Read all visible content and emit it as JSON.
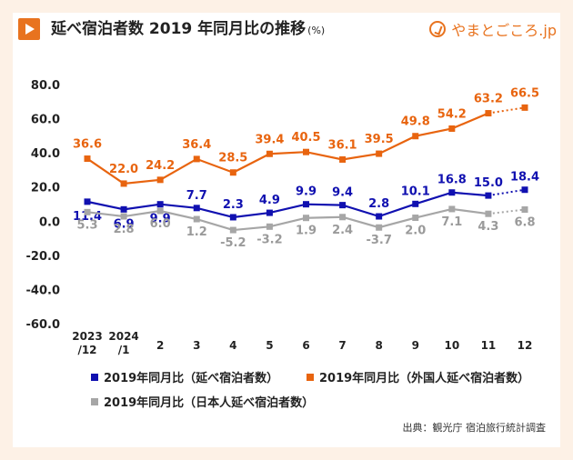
{
  "header": {
    "title": "延べ宿泊者数  2019 年同月比の推移",
    "title_unit": "(%)",
    "logo_text": "やまとごころ.jp",
    "logo_icon": "yamatogokoro-logo-icon",
    "accent_color": "#e8731f"
  },
  "source": "出典：観光庁 宿泊旅行統計調査",
  "chart_data": {
    "type": "line",
    "categories": [
      "2023/12",
      "2024/1",
      "2",
      "3",
      "4",
      "5",
      "6",
      "7",
      "8",
      "9",
      "10",
      "11",
      "12"
    ],
    "category_lines": [
      [
        "2023",
        "/12"
      ],
      [
        "2024",
        "/1"
      ],
      [
        "2"
      ],
      [
        "3"
      ],
      [
        "4"
      ],
      [
        "5"
      ],
      [
        "6"
      ],
      [
        "7"
      ],
      [
        "8"
      ],
      [
        "9"
      ],
      [
        "10"
      ],
      [
        "11"
      ],
      [
        "12"
      ]
    ],
    "y_ticks": [
      "80.0",
      "60.0",
      "40.0",
      "20.0",
      "0.0",
      "-20.0",
      "-40.0",
      "-60.0"
    ],
    "ylim": [
      -60,
      80
    ],
    "grid": false,
    "legend_position": "bottom",
    "dotted_last_segment": true,
    "series": [
      {
        "name": "2019年同月比（延べ宿泊者数）",
        "color": "#1010b0",
        "values": [
          11.4,
          6.9,
          9.9,
          7.7,
          2.3,
          4.9,
          9.9,
          9.4,
          2.8,
          10.1,
          16.8,
          15.0,
          18.4
        ],
        "labels": [
          "11.4",
          "6.9",
          "9.9",
          "7.7",
          "2.3",
          "4.9",
          "9.9",
          "9.4",
          "2.8",
          "10.1",
          "16.8",
          "15.0",
          "18.4"
        ]
      },
      {
        "name": "2019年同月比（外国人延べ宿泊者数）",
        "color": "#e8640f",
        "values": [
          36.6,
          22.0,
          24.2,
          36.4,
          28.5,
          39.4,
          40.5,
          36.1,
          39.5,
          49.8,
          54.2,
          63.2,
          66.5
        ],
        "labels": [
          "36.6",
          "22.0",
          "24.2",
          "36.4",
          "28.5",
          "39.4",
          "40.5",
          "36.1",
          "39.5",
          "49.8",
          "54.2",
          "63.2",
          "66.5"
        ]
      },
      {
        "name": "2019年同月比（日本人延べ宿泊者数）",
        "color": "#a6a6a6",
        "values": [
          5.3,
          2.8,
          6.0,
          1.2,
          -5.2,
          -3.2,
          1.9,
          2.4,
          -3.7,
          2.0,
          7.1,
          4.3,
          6.8
        ],
        "labels": [
          "5.3",
          "2.8",
          "6.0",
          "1.2",
          "-5.2",
          "-3.2",
          "1.9",
          "2.4",
          "-3.7",
          "2.0",
          "7.1",
          "4.3",
          "6.8"
        ]
      }
    ]
  }
}
